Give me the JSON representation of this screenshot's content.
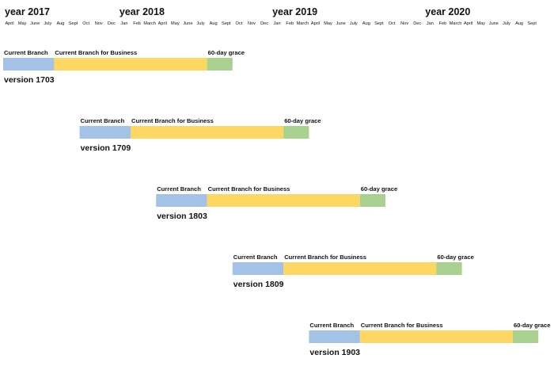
{
  "timeline": {
    "years": [
      {
        "label": "year 2017",
        "month_index": 0
      },
      {
        "label": "year 2018",
        "month_index": 9
      },
      {
        "label": "year 2019",
        "month_index": 21
      },
      {
        "label": "year 2020",
        "month_index": 33
      }
    ],
    "months": [
      "April",
      "May",
      "June",
      "July",
      "Aug",
      "Sept",
      "Oct",
      "Nov",
      "Dec",
      "Jan",
      "Feb",
      "March",
      "April",
      "May",
      "June",
      "July",
      "Aug",
      "Sept",
      "Oct",
      "Nov",
      "Dec",
      "Jan",
      "Feb",
      "March",
      "April",
      "May",
      "June",
      "July",
      "Aug",
      "Sept",
      "Oct",
      "Nov",
      "Dec",
      "Jan",
      "Feb",
      "March",
      "April",
      "May",
      "June",
      "July",
      "Aug",
      "Sept"
    ]
  },
  "phase_colors": {
    "current_branch": "#a4c2e5",
    "current_branch_business": "#fdd763",
    "grace": "#a9d08e"
  },
  "releases": [
    {
      "version": "version 1703",
      "start_month": 0,
      "phases": [
        {
          "label": "Current Branch",
          "months": 4,
          "color_key": "current_branch"
        },
        {
          "label": "Current Branch for Business",
          "months": 12,
          "color_key": "current_branch_business"
        },
        {
          "label": "60-day grace",
          "months": 2,
          "color_key": "grace"
        }
      ]
    },
    {
      "version": "version 1709",
      "start_month": 6,
      "phases": [
        {
          "label": "Current Branch",
          "months": 4,
          "color_key": "current_branch"
        },
        {
          "label": "Current Branch for Business",
          "months": 12,
          "color_key": "current_branch_business"
        },
        {
          "label": "60-day grace",
          "months": 2,
          "color_key": "grace"
        }
      ]
    },
    {
      "version": "version 1803",
      "start_month": 12,
      "phases": [
        {
          "label": "Current Branch",
          "months": 4,
          "color_key": "current_branch"
        },
        {
          "label": "Current Branch for Business",
          "months": 12,
          "color_key": "current_branch_business"
        },
        {
          "label": "60-day grace",
          "months": 2,
          "color_key": "grace"
        }
      ]
    },
    {
      "version": "version 1809",
      "start_month": 18,
      "phases": [
        {
          "label": "Current Branch",
          "months": 4,
          "color_key": "current_branch"
        },
        {
          "label": "Current Branch for Business",
          "months": 12,
          "color_key": "current_branch_business"
        },
        {
          "label": "60-day grace",
          "months": 2,
          "color_key": "grace"
        }
      ]
    },
    {
      "version": "version 1903",
      "start_month": 24,
      "phases": [
        {
          "label": "Current Branch",
          "months": 4,
          "color_key": "current_branch"
        },
        {
          "label": "Current Branch for Business",
          "months": 12,
          "color_key": "current_branch_business"
        },
        {
          "label": "60-day grace",
          "months": 2,
          "color_key": "grace"
        }
      ]
    }
  ]
}
